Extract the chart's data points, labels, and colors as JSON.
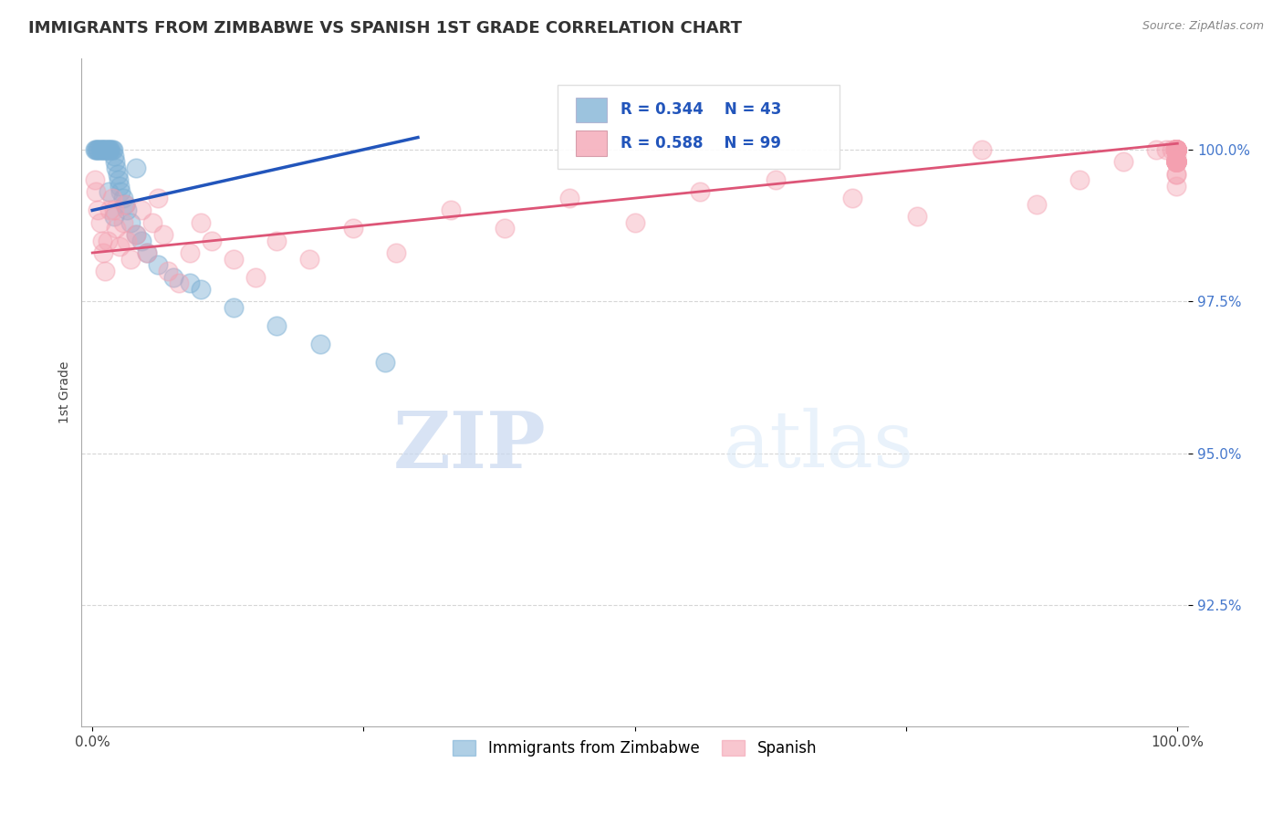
{
  "title": "IMMIGRANTS FROM ZIMBABWE VS SPANISH 1ST GRADE CORRELATION CHART",
  "source": "Source: ZipAtlas.com",
  "ylabel": "1st Grade",
  "color_blue": "#7BAFD4",
  "color_pink": "#F4A0B0",
  "color_trendline_blue": "#2255BB",
  "color_trendline_pink": "#DD5577",
  "background_color": "#FFFFFF",
  "legend_r1": "R = 0.344",
  "legend_n1": "N = 43",
  "legend_r2": "R = 0.588",
  "legend_n2": "N = 99",
  "blue_scatter_x": [
    0.2,
    0.3,
    0.4,
    0.5,
    0.6,
    0.7,
    0.8,
    0.9,
    1.0,
    1.1,
    1.2,
    1.3,
    1.4,
    1.5,
    1.6,
    1.7,
    1.8,
    1.9,
    2.0,
    2.1,
    2.2,
    2.3,
    2.4,
    2.5,
    2.6,
    2.8,
    3.0,
    3.2,
    3.5,
    4.0,
    4.5,
    5.0,
    6.0,
    7.5,
    9.0,
    10.0,
    13.0,
    17.0,
    21.0,
    27.0,
    4.0,
    1.5,
    2.0
  ],
  "blue_scatter_y": [
    100.0,
    100.0,
    100.0,
    100.0,
    100.0,
    100.0,
    100.0,
    100.0,
    100.0,
    100.0,
    100.0,
    100.0,
    100.0,
    100.0,
    100.0,
    100.0,
    100.0,
    100.0,
    99.9,
    99.8,
    99.7,
    99.6,
    99.5,
    99.4,
    99.3,
    99.2,
    99.1,
    99.0,
    98.8,
    98.6,
    98.5,
    98.3,
    98.1,
    97.9,
    97.8,
    97.7,
    97.4,
    97.1,
    96.8,
    96.5,
    99.7,
    99.3,
    98.9
  ],
  "pink_scatter_x": [
    0.2,
    0.3,
    0.5,
    0.7,
    0.9,
    1.0,
    1.2,
    1.4,
    1.6,
    1.8,
    2.0,
    2.2,
    2.5,
    2.8,
    3.0,
    3.2,
    3.5,
    4.0,
    4.5,
    5.0,
    5.5,
    6.0,
    6.5,
    7.0,
    8.0,
    9.0,
    10.0,
    11.0,
    13.0,
    15.0,
    17.0,
    20.0,
    24.0,
    28.0,
    33.0,
    38.0,
    44.0,
    50.0,
    56.0,
    63.0,
    70.0,
    76.0,
    82.0,
    87.0,
    91.0,
    95.0,
    98.0,
    99.0,
    99.5,
    99.8,
    99.9,
    99.9,
    99.9,
    99.9,
    99.9,
    99.9,
    99.9,
    99.9,
    99.9,
    99.9,
    99.9,
    99.9,
    99.9,
    99.9,
    99.9,
    99.9,
    99.9,
    99.9,
    99.9,
    99.9,
    99.9,
    99.9,
    99.9,
    99.9,
    99.9,
    99.9,
    99.9,
    99.9,
    99.9,
    99.9,
    99.9,
    99.9,
    99.9,
    99.9,
    99.9,
    99.9,
    99.9,
    99.9,
    99.9,
    99.9,
    99.9,
    99.9,
    99.9,
    99.9,
    99.9,
    99.9,
    99.9,
    99.9,
    99.9
  ],
  "pink_scatter_y": [
    99.5,
    99.3,
    99.0,
    98.8,
    98.5,
    98.3,
    98.0,
    98.5,
    99.0,
    99.2,
    99.0,
    98.7,
    98.4,
    98.8,
    99.1,
    98.5,
    98.2,
    98.6,
    99.0,
    98.3,
    98.8,
    99.2,
    98.6,
    98.0,
    97.8,
    98.3,
    98.8,
    98.5,
    98.2,
    97.9,
    98.5,
    98.2,
    98.7,
    98.3,
    99.0,
    98.7,
    99.2,
    98.8,
    99.3,
    99.5,
    99.2,
    98.9,
    100.0,
    99.1,
    99.5,
    99.8,
    100.0,
    100.0,
    100.0,
    100.0,
    100.0,
    100.0,
    100.0,
    100.0,
    100.0,
    100.0,
    100.0,
    100.0,
    100.0,
    100.0,
    100.0,
    100.0,
    100.0,
    100.0,
    100.0,
    100.0,
    100.0,
    99.8,
    99.6,
    99.4,
    99.8,
    99.6,
    100.0,
    100.0,
    99.8,
    100.0,
    99.8,
    100.0,
    99.8,
    100.0,
    99.8,
    100.0,
    99.8,
    100.0,
    99.8,
    100.0,
    99.8,
    100.0,
    99.8,
    100.0,
    99.8,
    100.0,
    99.8,
    100.0,
    99.8,
    100.0,
    99.8,
    100.0,
    99.9
  ],
  "blue_trend_x": [
    0,
    30
  ],
  "blue_trend_y": [
    99.0,
    100.2
  ],
  "pink_trend_x": [
    0,
    100
  ],
  "pink_trend_y": [
    98.3,
    100.1
  ],
  "xlim": [
    -1,
    101
  ],
  "ylim": [
    90.5,
    101.5
  ],
  "yticks": [
    92.5,
    95.0,
    97.5,
    100.0
  ],
  "ytick_labels": [
    "92.5%",
    "95.0%",
    "97.5%",
    "100.0%"
  ]
}
